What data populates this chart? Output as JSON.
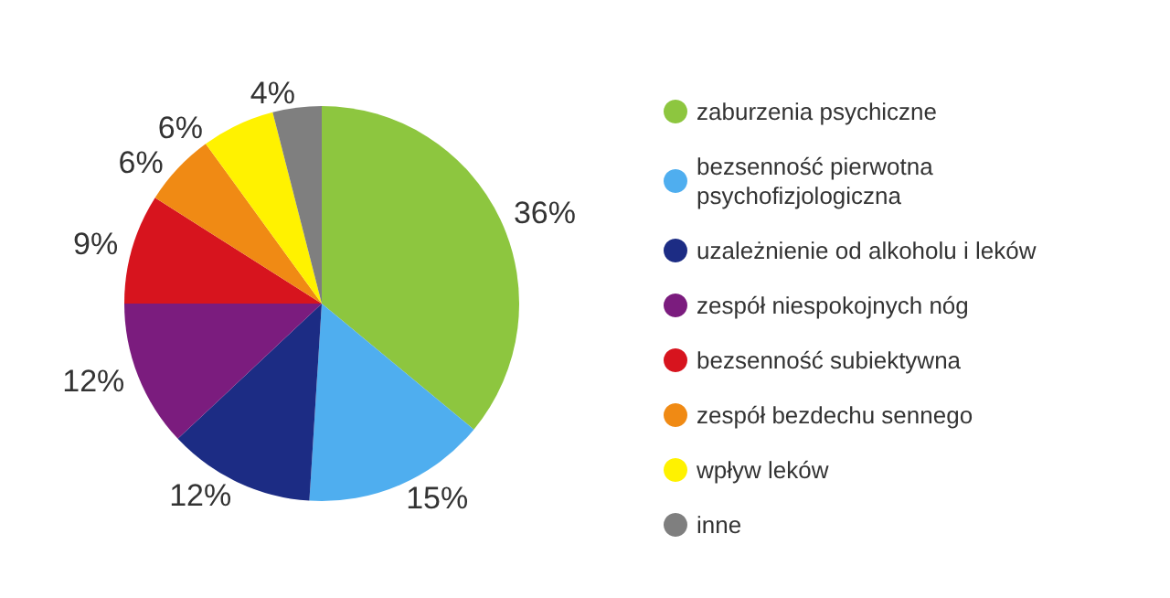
{
  "chart_data": {
    "type": "pie",
    "categories": [
      "zaburzenia psychiczne",
      "bezsenność pierwotna psychofizjologiczna",
      "uzależnienie od alkoholu i leków",
      "zespół niespokojnych nóg",
      "bezsenność subiektywna",
      "zespół bezdechu sennego",
      "wpływ leków",
      "inne"
    ],
    "values": [
      36,
      15,
      12,
      12,
      9,
      6,
      6,
      4
    ],
    "value_labels": [
      "36%",
      "15%",
      "12%",
      "12%",
      "9%",
      "6%",
      "6%",
      "4%"
    ],
    "colors": [
      "#8dc63f",
      "#4faeef",
      "#1c2c84",
      "#7b1c7e",
      "#d7141e",
      "#f08a14",
      "#fff200",
      "#7f7f7f"
    ],
    "legend": "right"
  }
}
